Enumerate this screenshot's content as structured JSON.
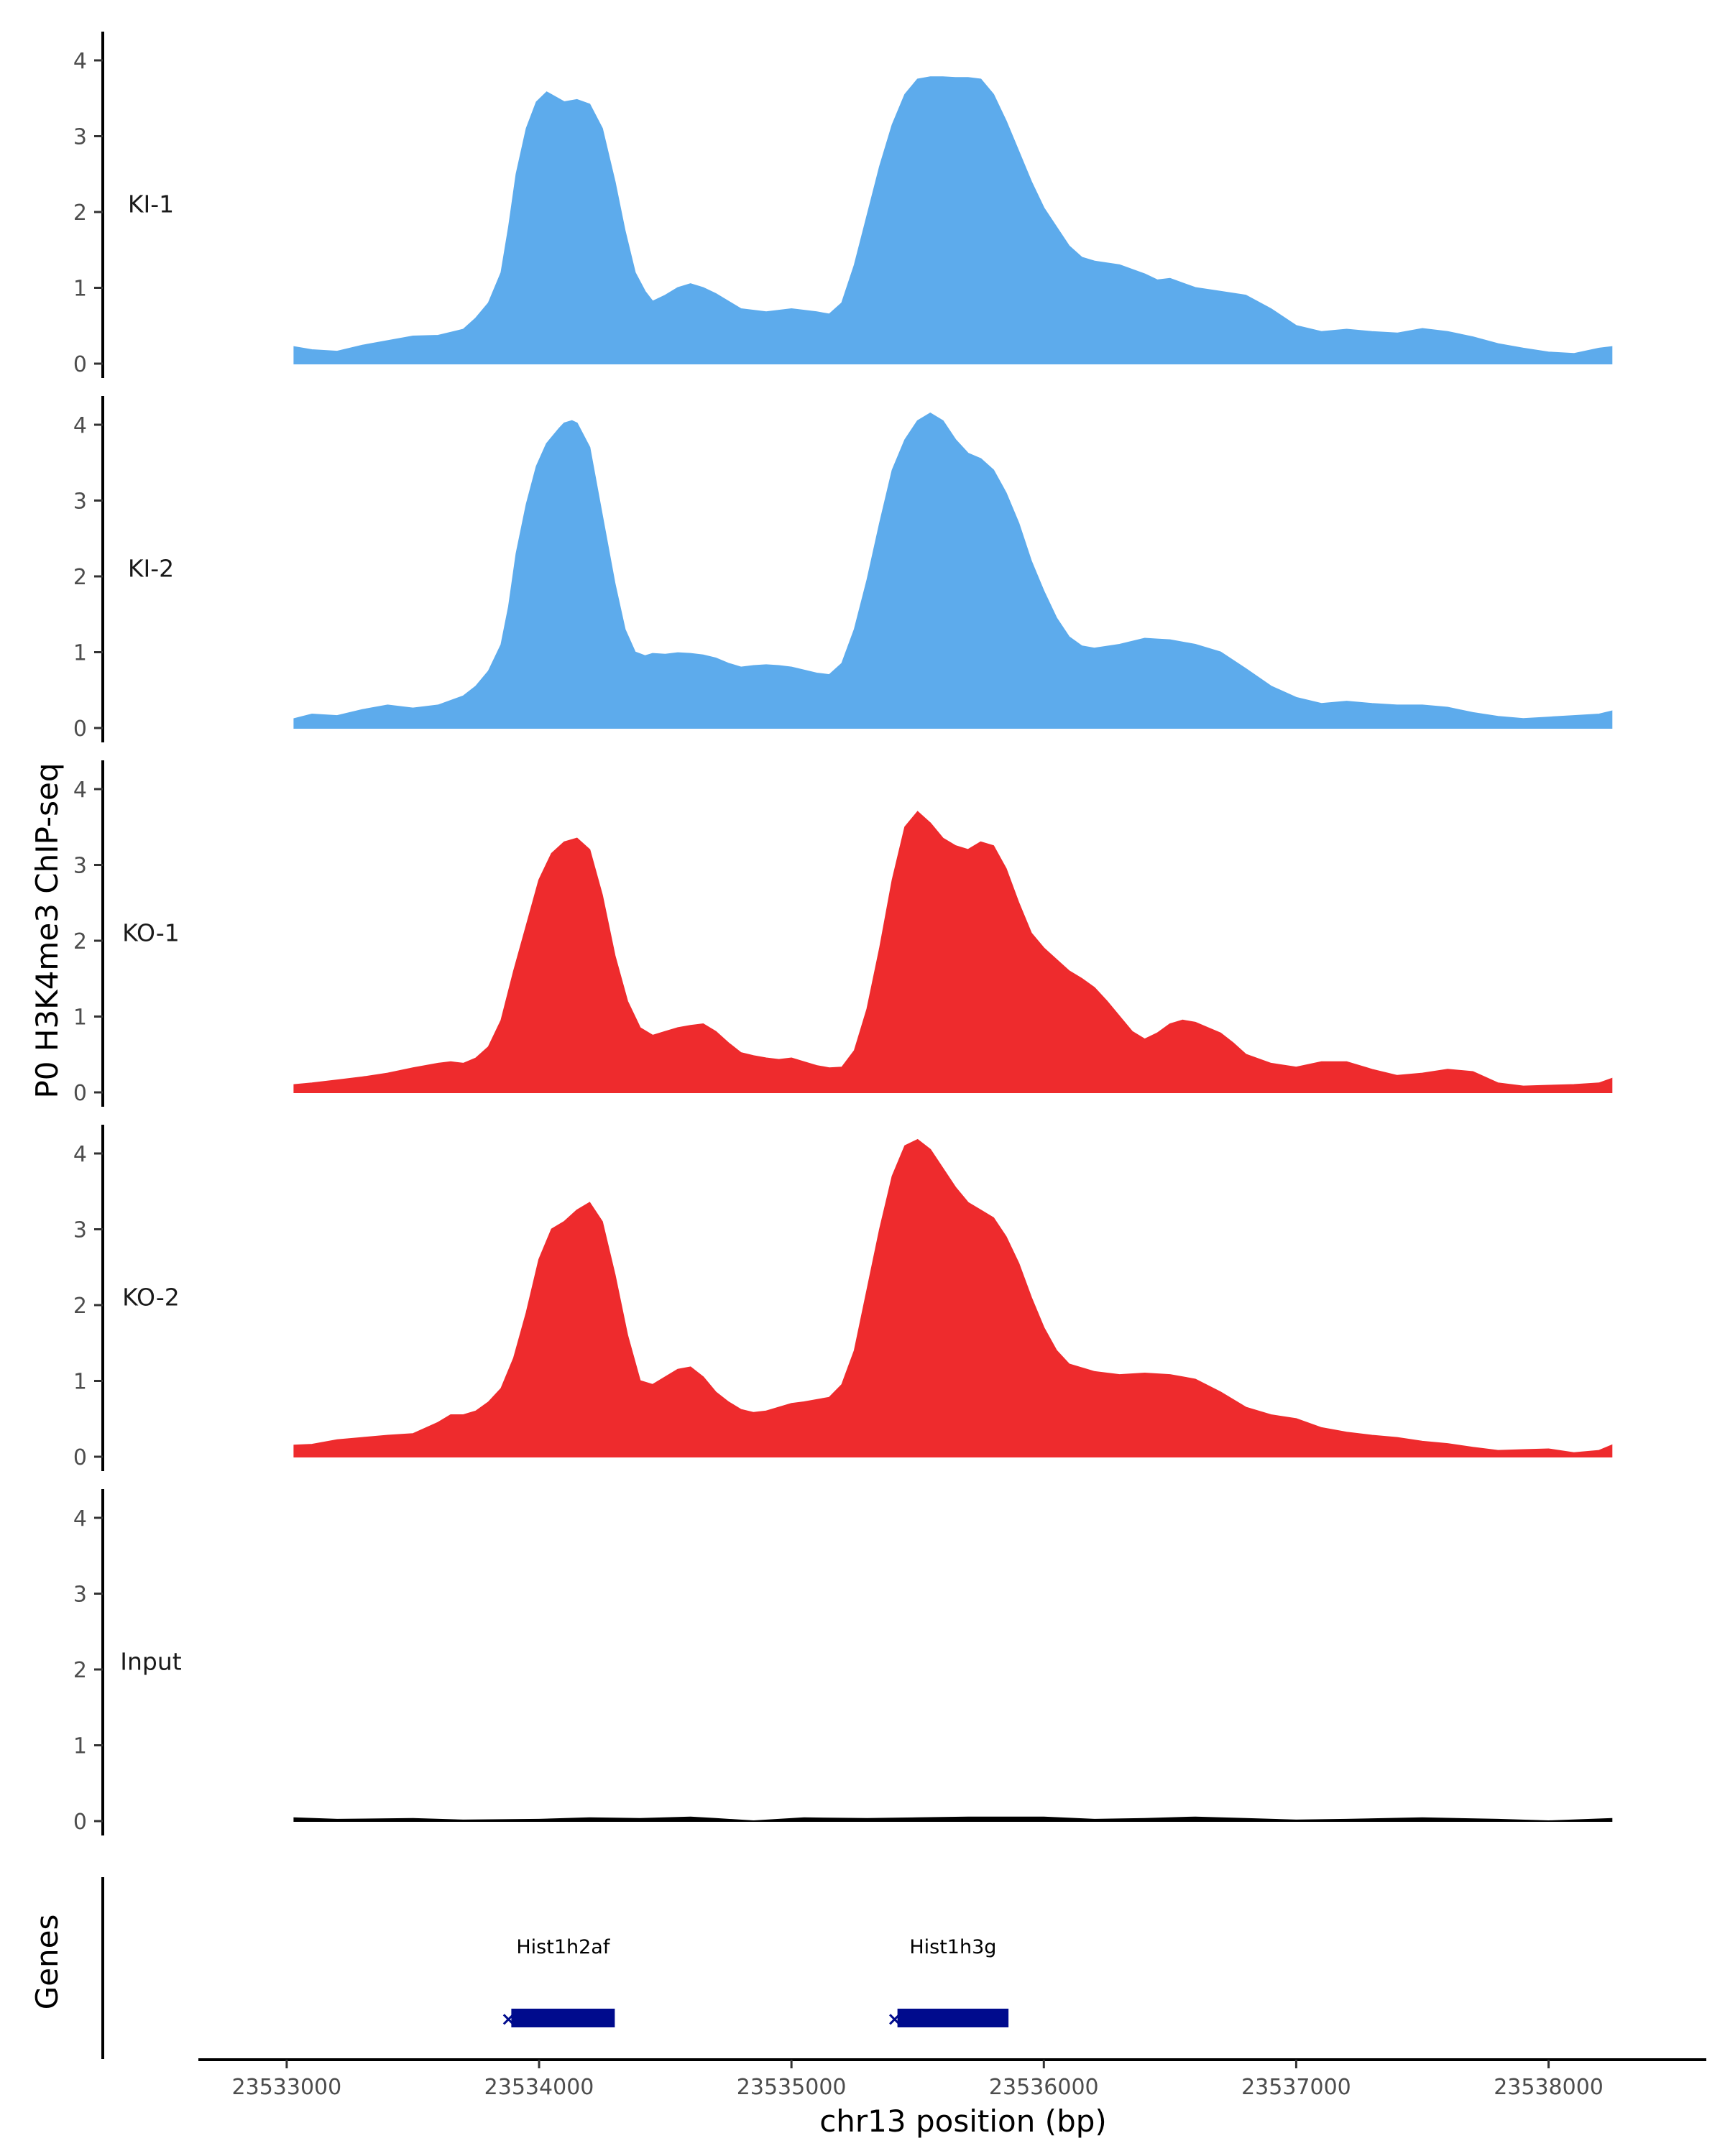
{
  "chart_data": {
    "type": "area",
    "title": "",
    "ylabel": "P0 H3K4me3 ChIP-seq",
    "xlabel": "chr13 position (bp)",
    "xlim": [
      23532650,
      23538625
    ],
    "ylim": [
      0,
      4.4
    ],
    "x_ticks": [
      23533000,
      23534000,
      23535000,
      23536000,
      23537000,
      23538000
    ],
    "x_tick_labels": [
      "23533000",
      "23534000",
      "23535000",
      "23536000",
      "23537000",
      "23538000"
    ],
    "y_ticks": [
      0,
      1,
      2,
      3,
      4
    ],
    "y_tick_labels": [
      "0",
      "1",
      "2",
      "3",
      "4"
    ],
    "grid": false,
    "colors": {
      "KI": "#5dabec",
      "KO": "#ee2b2d",
      "Input": "#000000",
      "gene": "#000b8d"
    },
    "series": [
      {
        "name": "KI-1",
        "color": "#5dabec",
        "x": [
          23533030,
          23533100,
          23533200,
          23533300,
          23533400,
          23533500,
          23533600,
          23533700,
          23533750,
          23533800,
          23533850,
          23533880,
          23533910,
          23533950,
          23533990,
          23534030,
          23534100,
          23534150,
          23534200,
          23534250,
          23534300,
          23534340,
          23534380,
          23534420,
          23534450,
          23534500,
          23534550,
          23534600,
          23534650,
          23534700,
          23534750,
          23534800,
          23534850,
          23534900,
          23534950,
          23535000,
          23535100,
          23535150,
          23535200,
          23535250,
          23535300,
          23535350,
          23535400,
          23535450,
          23535500,
          23535550,
          23535600,
          23535650,
          23535700,
          23535750,
          23535800,
          23535850,
          23535900,
          23535950,
          23536000,
          23536050,
          23536100,
          23536150,
          23536200,
          23536300,
          23536400,
          23536450,
          23536500,
          23536600,
          23536700,
          23536800,
          23536900,
          23537000,
          23537100,
          23537200,
          23537300,
          23537400,
          23537500,
          23537600,
          23537700,
          23537800,
          23537900,
          23538000,
          23538100,
          23538200,
          23538250
        ],
        "y": [
          0.22,
          0.18,
          0.16,
          0.24,
          0.3,
          0.36,
          0.37,
          0.45,
          0.6,
          0.8,
          1.2,
          1.8,
          2.5,
          3.1,
          3.45,
          3.58,
          3.45,
          3.48,
          3.42,
          3.1,
          2.4,
          1.75,
          1.2,
          0.95,
          0.82,
          0.9,
          1.0,
          1.05,
          1.0,
          0.92,
          0.82,
          0.72,
          0.7,
          0.68,
          0.7,
          0.72,
          0.68,
          0.65,
          0.8,
          1.3,
          1.95,
          2.6,
          3.15,
          3.55,
          3.75,
          3.78,
          3.78,
          3.77,
          3.77,
          3.75,
          3.55,
          3.2,
          2.8,
          2.4,
          2.05,
          1.8,
          1.55,
          1.4,
          1.35,
          1.3,
          1.18,
          1.1,
          1.12,
          1.0,
          0.95,
          0.9,
          0.72,
          0.5,
          0.42,
          0.45,
          0.42,
          0.4,
          0.46,
          0.42,
          0.35,
          0.26,
          0.2,
          0.15,
          0.13,
          0.2,
          0.22
        ]
      },
      {
        "name": "KI-2",
        "color": "#5dabec",
        "x": [
          23533030,
          23533100,
          23533200,
          23533300,
          23533400,
          23533500,
          23533600,
          23533700,
          23533750,
          23533800,
          23533850,
          23533880,
          23533910,
          23533950,
          23533990,
          23534030,
          23534080,
          23534100,
          23534130,
          23534150,
          23534200,
          23534250,
          23534300,
          23534340,
          23534380,
          23534420,
          23534450,
          23534500,
          23534550,
          23534600,
          23534650,
          23534700,
          23534750,
          23534800,
          23534850,
          23534900,
          23534950,
          23535000,
          23535100,
          23535150,
          23535200,
          23535250,
          23535300,
          23535350,
          23535400,
          23535450,
          23535500,
          23535550,
          23535600,
          23535650,
          23535700,
          23535750,
          23535800,
          23535850,
          23535900,
          23535950,
          23536000,
          23536050,
          23536100,
          23536150,
          23536200,
          23536300,
          23536400,
          23536450,
          23536500,
          23536600,
          23536700,
          23536800,
          23536900,
          23537000,
          23537100,
          23537200,
          23537300,
          23537400,
          23537500,
          23537600,
          23537700,
          23537800,
          23537900,
          23538000,
          23538100,
          23538200,
          23538250
        ],
        "y": [
          0.12,
          0.18,
          0.16,
          0.24,
          0.3,
          0.26,
          0.3,
          0.42,
          0.55,
          0.75,
          1.1,
          1.6,
          2.3,
          2.95,
          3.45,
          3.75,
          3.95,
          4.02,
          4.05,
          4.02,
          3.7,
          2.8,
          1.9,
          1.3,
          1.0,
          0.95,
          0.98,
          0.97,
          0.99,
          0.98,
          0.96,
          0.92,
          0.85,
          0.8,
          0.82,
          0.83,
          0.82,
          0.8,
          0.72,
          0.7,
          0.85,
          1.3,
          1.95,
          2.7,
          3.4,
          3.8,
          4.05,
          4.15,
          4.05,
          3.8,
          3.62,
          3.55,
          3.4,
          3.1,
          2.7,
          2.2,
          1.8,
          1.45,
          1.2,
          1.08,
          1.05,
          1.1,
          1.18,
          1.17,
          1.16,
          1.1,
          1.0,
          0.78,
          0.55,
          0.4,
          0.32,
          0.35,
          0.32,
          0.3,
          0.3,
          0.27,
          0.2,
          0.15,
          0.12,
          0.14,
          0.16,
          0.18,
          0.22
        ]
      },
      {
        "name": "KO-1",
        "color": "#ee2b2d",
        "x": [
          23533030,
          23533100,
          23533200,
          23533300,
          23533400,
          23533500,
          23533600,
          23533650,
          23533700,
          23533750,
          23533800,
          23533850,
          23533900,
          23533950,
          23534000,
          23534050,
          23534100,
          23534150,
          23534200,
          23534250,
          23534300,
          23534350,
          23534400,
          23534450,
          23534500,
          23534550,
          23534600,
          23534650,
          23534700,
          23534750,
          23534800,
          23534850,
          23534900,
          23534950,
          23535000,
          23535050,
          23535100,
          23535150,
          23535200,
          23535250,
          23535300,
          23535350,
          23535400,
          23535450,
          23535500,
          23535550,
          23535600,
          23535650,
          23535700,
          23535750,
          23535800,
          23535850,
          23535900,
          23535950,
          23536000,
          23536050,
          23536100,
          23536150,
          23536200,
          23536250,
          23536300,
          23536350,
          23536400,
          23536450,
          23536500,
          23536550,
          23536600,
          23536650,
          23536700,
          23536750,
          23536800,
          23536900,
          23537000,
          23537100,
          23537200,
          23537300,
          23537400,
          23537500,
          23537600,
          23537700,
          23537800,
          23537900,
          23538000,
          23538100,
          23538200,
          23538250
        ],
        "y": [
          0.1,
          0.12,
          0.16,
          0.2,
          0.25,
          0.32,
          0.38,
          0.4,
          0.38,
          0.45,
          0.6,
          0.95,
          1.6,
          2.2,
          2.8,
          3.15,
          3.3,
          3.35,
          3.2,
          2.6,
          1.8,
          1.2,
          0.85,
          0.75,
          0.8,
          0.85,
          0.88,
          0.9,
          0.8,
          0.65,
          0.52,
          0.48,
          0.45,
          0.43,
          0.45,
          0.4,
          0.35,
          0.32,
          0.33,
          0.55,
          1.1,
          1.9,
          2.8,
          3.5,
          3.7,
          3.55,
          3.35,
          3.25,
          3.2,
          3.3,
          3.25,
          2.95,
          2.5,
          2.1,
          1.9,
          1.75,
          1.6,
          1.5,
          1.38,
          1.2,
          1.0,
          0.8,
          0.7,
          0.78,
          0.9,
          0.95,
          0.92,
          0.85,
          0.78,
          0.65,
          0.5,
          0.38,
          0.33,
          0.4,
          0.4,
          0.3,
          0.22,
          0.25,
          0.3,
          0.27,
          0.12,
          0.08,
          0.09,
          0.1,
          0.12,
          0.18
        ]
      },
      {
        "name": "KO-2",
        "color": "#ee2b2d",
        "x": [
          23533030,
          23533100,
          23533200,
          23533300,
          23533400,
          23533500,
          23533600,
          23533650,
          23533700,
          23533750,
          23533800,
          23533850,
          23533900,
          23533950,
          23534000,
          23534050,
          23534100,
          23534150,
          23534200,
          23534250,
          23534300,
          23534350,
          23534400,
          23534450,
          23534500,
          23534550,
          23534600,
          23534650,
          23534700,
          23534750,
          23534800,
          23534850,
          23534900,
          23534950,
          23535000,
          23535050,
          23535100,
          23535150,
          23535200,
          23535250,
          23535300,
          23535350,
          23535400,
          23535450,
          23535500,
          23535550,
          23535600,
          23535650,
          23535700,
          23535750,
          23535800,
          23535850,
          23535900,
          23535950,
          23536000,
          23536050,
          23536100,
          23536200,
          23536300,
          23536400,
          23536500,
          23536600,
          23536700,
          23536800,
          23536900,
          23537000,
          23537100,
          23537200,
          23537300,
          23537400,
          23537500,
          23537600,
          23537700,
          23537800,
          23537900,
          23538000,
          23538100,
          23538200,
          23538250
        ],
        "y": [
          0.15,
          0.16,
          0.22,
          0.25,
          0.28,
          0.3,
          0.45,
          0.55,
          0.55,
          0.6,
          0.72,
          0.9,
          1.3,
          1.9,
          2.6,
          3.0,
          3.1,
          3.25,
          3.35,
          3.1,
          2.4,
          1.6,
          1.0,
          0.95,
          1.05,
          1.15,
          1.18,
          1.05,
          0.85,
          0.72,
          0.62,
          0.58,
          0.6,
          0.65,
          0.7,
          0.72,
          0.75,
          0.78,
          0.95,
          1.4,
          2.2,
          3.0,
          3.7,
          4.1,
          4.18,
          4.05,
          3.8,
          3.55,
          3.35,
          3.25,
          3.15,
          2.9,
          2.55,
          2.1,
          1.7,
          1.4,
          1.22,
          1.12,
          1.08,
          1.1,
          1.08,
          1.02,
          0.85,
          0.65,
          0.55,
          0.5,
          0.38,
          0.32,
          0.28,
          0.25,
          0.2,
          0.17,
          0.12,
          0.08,
          0.09,
          0.1,
          0.05,
          0.08,
          0.15
        ]
      },
      {
        "name": "Input",
        "color": "#000000",
        "x": [
          23533030,
          23533200,
          23533500,
          23533700,
          23534000,
          23534200,
          23534400,
          23534600,
          23534700,
          23534850,
          23535050,
          23535300,
          23535500,
          23535700,
          23536000,
          23536200,
          23536400,
          23536600,
          23536800,
          23537000,
          23537200,
          23537500,
          23537800,
          23538000,
          23538250
        ],
        "y": [
          0.04,
          0.02,
          0.03,
          0.01,
          0.02,
          0.04,
          0.03,
          0.05,
          0.03,
          0.0,
          0.04,
          0.03,
          0.04,
          0.05,
          0.05,
          0.02,
          0.03,
          0.05,
          0.03,
          0.01,
          0.02,
          0.04,
          0.02,
          0.0,
          0.03
        ]
      }
    ],
    "genes": [
      {
        "name": "Hist1h2af",
        "start": 23533890,
        "end": 23534300
      },
      {
        "name": "Hist1h3g",
        "start": 23535420,
        "end": 23535860
      }
    ],
    "genes_label": "Genes"
  }
}
